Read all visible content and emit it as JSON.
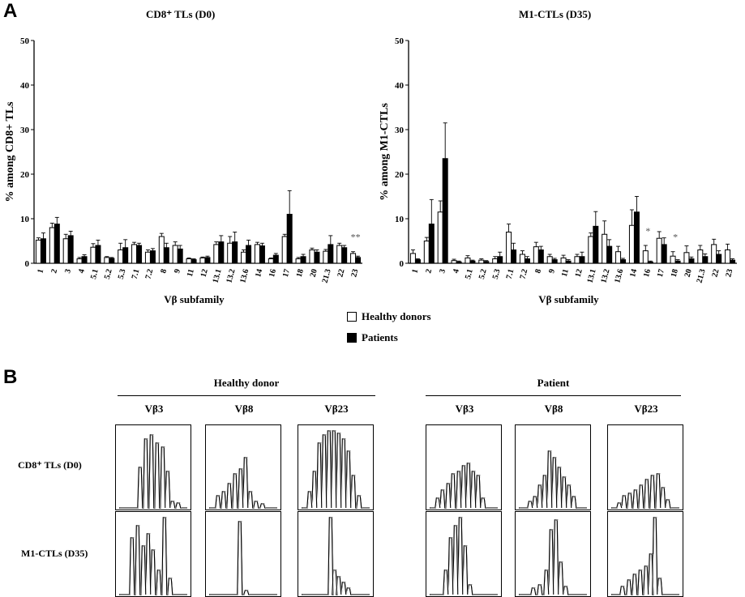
{
  "panel_labels": {
    "a": "A",
    "b": "B"
  },
  "legend": {
    "healthy": "Healthy donors",
    "patients": "Patients",
    "healthy_color": "#ffffff",
    "patients_color": "#000000"
  },
  "chart_data": [
    {
      "type": "bar",
      "title": "CD8⁺ TLs  (D0)",
      "xlabel": "Vβ subfamily",
      "ylabel": "% among CD8+ TLs",
      "ylim": [
        0,
        50
      ],
      "yticks": [
        "0",
        "10",
        "20",
        "30",
        "40",
        "50"
      ],
      "categories": [
        "1",
        "2",
        "3",
        "4",
        "5.1",
        "5.2",
        "5.3",
        "7.1",
        "7.2",
        "8",
        "9",
        "11",
        "12",
        "13.1",
        "13.2",
        "13.6",
        "14",
        "16",
        "17",
        "18",
        "20",
        "21.3",
        "22",
        "23"
      ],
      "series": [
        {
          "name": "Healthy donors",
          "values": [
            5.2,
            8,
            5.5,
            1,
            3.6,
            1.3,
            3,
            4.2,
            2.5,
            6,
            4,
            1,
            1.2,
            4.2,
            4.5,
            2.5,
            4.2,
            1,
            6,
            1,
            3,
            2.7,
            4,
            2.2
          ],
          "errors": [
            0.5,
            1,
            1,
            0.3,
            0.8,
            0.2,
            1.5,
            0.5,
            0.5,
            0.7,
            0.8,
            0.2,
            0.2,
            0.6,
            1.5,
            0.5,
            0.5,
            0.2,
            0.5,
            0.3,
            0.4,
            0.4,
            0.5,
            0.4
          ]
        },
        {
          "name": "Patients",
          "values": [
            5.5,
            8.8,
            6.2,
            1.5,
            4,
            1.1,
            3.5,
            4,
            2.8,
            3.5,
            3.2,
            0.8,
            1.3,
            4.8,
            4.8,
            4,
            3.9,
            1.8,
            11,
            1.5,
            2.5,
            4.2,
            3.5,
            1.3
          ],
          "errors": [
            1.3,
            1.5,
            1,
            0.4,
            1.2,
            0.2,
            1.8,
            0.5,
            0.5,
            1,
            0.8,
            0.2,
            0.3,
            1.4,
            2.2,
            1.2,
            0.6,
            0.4,
            5.3,
            0.5,
            0.5,
            2,
            0.5,
            0.3
          ]
        }
      ],
      "annotations": [
        {
          "category": "23",
          "text": "**"
        }
      ]
    },
    {
      "type": "bar",
      "title": "M1-CTLs (D35)",
      "xlabel": "Vβ subfamily",
      "ylabel": "% among M1-CTLs",
      "ylim": [
        0,
        50
      ],
      "yticks": [
        "0",
        "10",
        "20",
        "30",
        "40",
        "50"
      ],
      "categories": [
        "1",
        "2",
        "3",
        "4",
        "5.1",
        "5.2",
        "5.3",
        "7.1",
        "7.2",
        "8",
        "9",
        "11",
        "12",
        "13.1",
        "13.2",
        "13.6",
        "14",
        "16",
        "17",
        "18",
        "20",
        "21.3",
        "22",
        "23"
      ],
      "series": [
        {
          "name": "Healthy donors",
          "values": [
            2.2,
            5,
            11.5,
            0.6,
            1.2,
            0.7,
            1,
            7,
            2,
            3.7,
            1.5,
            1.2,
            1.5,
            6,
            6.5,
            2.6,
            8.5,
            2.8,
            5.6,
            1.6,
            2.4,
            3,
            4.2,
            3
          ],
          "errors": [
            0.8,
            0.8,
            2.5,
            0.3,
            0.5,
            0.3,
            0.5,
            1.8,
            0.8,
            1,
            0.5,
            0.6,
            0.5,
            0.8,
            3,
            1.2,
            3.5,
            1.2,
            1.5,
            1,
            1.5,
            1,
            1.2,
            1.3
          ]
        },
        {
          "name": "Patients",
          "values": [
            0.8,
            8.8,
            23.5,
            0.3,
            0.5,
            0.4,
            1.5,
            3,
            1,
            3,
            0.8,
            0.5,
            1.5,
            8.3,
            3.8,
            0.8,
            11.5,
            0.3,
            4.2,
            0.5,
            1,
            1.5,
            2,
            0.7
          ],
          "errors": [
            0.2,
            5.5,
            8,
            0.2,
            0.2,
            0.2,
            1,
            1.5,
            0.5,
            0.8,
            0.3,
            0.3,
            1,
            3.3,
            1.5,
            0.3,
            3.5,
            0.2,
            1.5,
            0.3,
            0.4,
            0.6,
            0.8,
            0.3
          ]
        }
      ],
      "annotations": [
        {
          "category": "16",
          "text": "*"
        },
        {
          "category": "18",
          "text": "*"
        }
      ]
    }
  ],
  "histograms": {
    "healthy_title": "Healthy donor",
    "patient_title": "Patient",
    "columns": [
      "Vβ3",
      "Vβ8",
      "Vβ23"
    ],
    "rows": [
      "CD8⁺ TLs (D0)",
      "M1-CTLs (D35)"
    ]
  }
}
